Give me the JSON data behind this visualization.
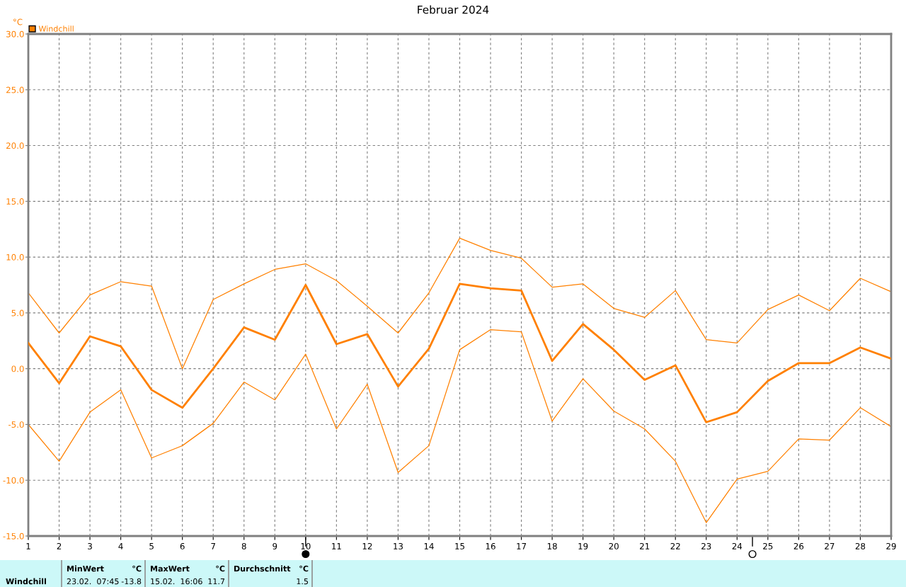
{
  "chart_data": {
    "type": "line",
    "title": "Februar 2024",
    "ylabel": "°C",
    "x": [
      1,
      2,
      3,
      4,
      5,
      6,
      7,
      8,
      9,
      10,
      11,
      12,
      13,
      14,
      15,
      16,
      17,
      18,
      19,
      20,
      21,
      22,
      23,
      24,
      25,
      26,
      27,
      28,
      29
    ],
    "series": [
      {
        "name": "Windchill",
        "color": "#ff8000",
        "values": [
          2.3,
          -1.3,
          2.9,
          2.0,
          -1.9,
          -3.5,
          0.0,
          3.7,
          2.6,
          7.5,
          2.2,
          3.1,
          -1.6,
          1.8,
          7.6,
          7.2,
          7.0,
          0.7,
          4.0,
          1.7,
          -1.0,
          0.3,
          -4.8,
          -3.9,
          -1.1,
          0.5,
          0.5,
          1.9,
          0.9
        ]
      },
      {
        "color": "#ff8000",
        "values": [
          6.8,
          3.2,
          6.6,
          7.8,
          7.4,
          0.0,
          6.2,
          7.6,
          8.9,
          9.4,
          7.9,
          5.6,
          3.2,
          6.8,
          11.7,
          10.6,
          9.9,
          7.3,
          7.6,
          5.4,
          4.6,
          7.0,
          2.6,
          2.3,
          5.3,
          6.6,
          5.2,
          8.1,
          6.9
        ]
      },
      {
        "color": "#ff8000",
        "values": [
          -5.0,
          -8.3,
          -3.9,
          -1.9,
          -8.0,
          -6.9,
          -4.9,
          -1.2,
          -2.8,
          1.3,
          -5.4,
          -1.4,
          -9.3,
          -6.9,
          1.7,
          3.5,
          3.3,
          -4.7,
          -0.9,
          -3.8,
          -5.4,
          -8.3,
          -13.8,
          -9.9,
          -9.2,
          -6.3,
          -6.4,
          -3.5,
          -5.2
        ]
      }
    ],
    "xlim": [
      1,
      29
    ],
    "xticks": [
      1,
      2,
      3,
      4,
      5,
      6,
      7,
      8,
      9,
      10,
      11,
      12,
      13,
      14,
      15,
      16,
      17,
      18,
      19,
      20,
      21,
      22,
      23,
      24,
      25,
      26,
      27,
      28,
      29
    ],
    "ylim": [
      -15,
      30
    ],
    "yticks": [
      {
        "value": -15,
        "label": "-15.0"
      },
      {
        "value": -10,
        "label": "-10.0"
      },
      {
        "value": -5,
        "label": "-5.0"
      },
      {
        "value": 0,
        "label": "0.0"
      },
      {
        "value": 5,
        "label": "5.0"
      },
      {
        "value": 10,
        "label": "10.0"
      },
      {
        "value": 15,
        "label": "15.0"
      },
      {
        "value": 20,
        "label": "20.0"
      },
      {
        "value": 25,
        "label": "25.0"
      },
      {
        "value": 30,
        "label": "30.0"
      }
    ],
    "grid": true,
    "legend": "top left",
    "marker": "none",
    "line_style": "solid",
    "annotations": [
      "Windchill",
      "MinWert",
      "°C",
      "23.02.  07:45",
      "-13.8",
      "MaxWert",
      "°C",
      "15.02.  16:06",
      "11.7",
      "Durchschnitt",
      "°C",
      "1.5"
    ]
  }
}
